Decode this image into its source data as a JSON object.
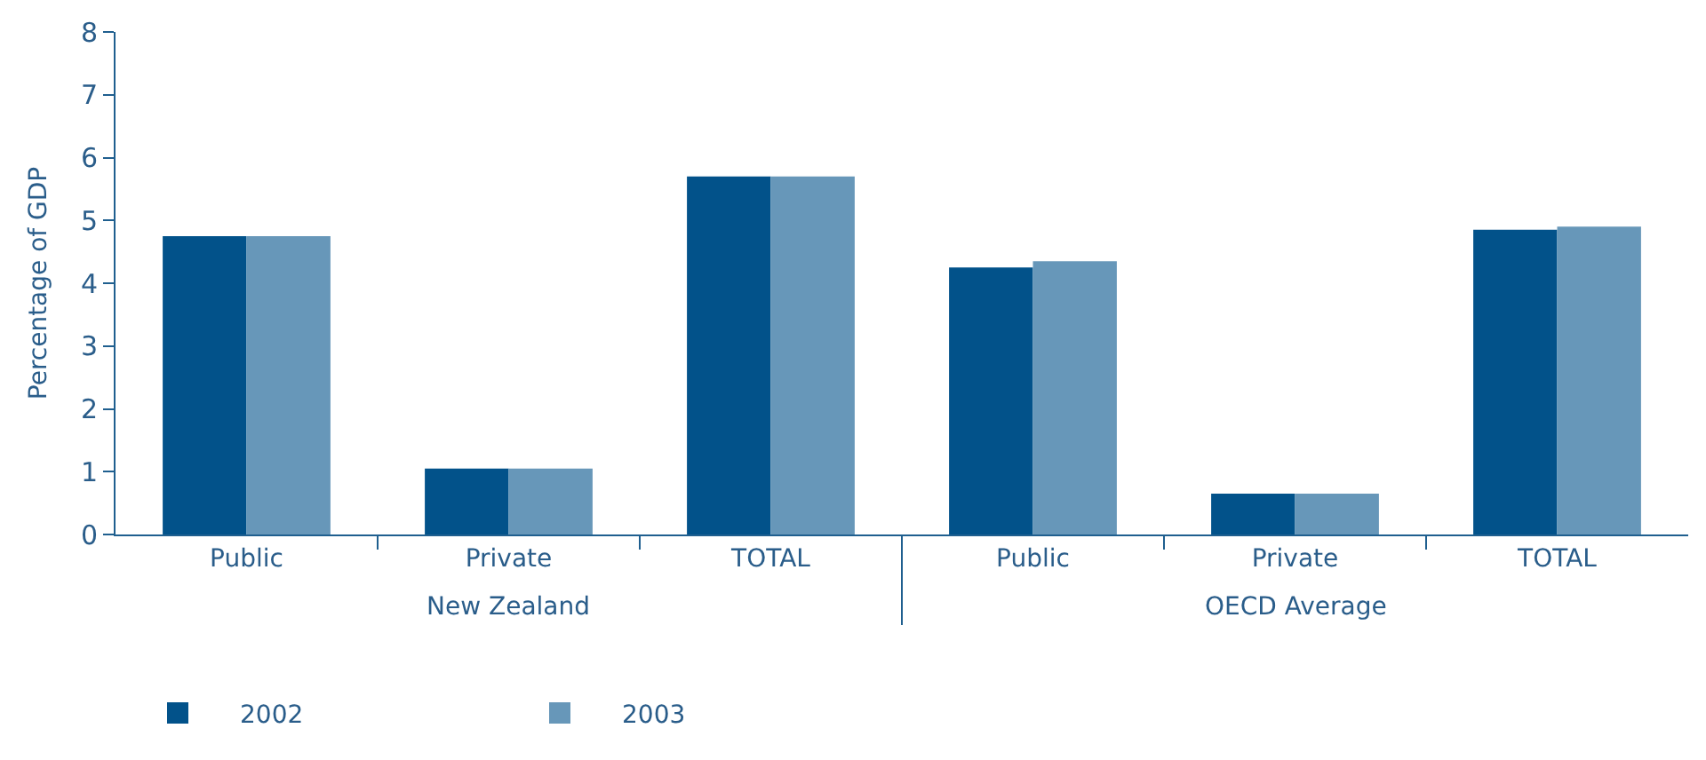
{
  "chart_data": {
    "type": "bar",
    "ylabel": "Percentage of GDP",
    "categories": [
      "Public",
      "Private",
      "TOTAL",
      "Public",
      "Private",
      "TOTAL"
    ],
    "series": [
      {
        "name": "2002",
        "color": "#02528a",
        "values": [
          4.75,
          1.05,
          5.7,
          4.25,
          0.65,
          4.85
        ]
      },
      {
        "name": "2003",
        "color": "#6797b9",
        "values": [
          4.75,
          1.05,
          5.7,
          4.35,
          0.65,
          4.9
        ]
      }
    ],
    "annotations": [
      "New Zealand",
      "OECD Average"
    ],
    "ylim": [
      0,
      8
    ],
    "yticks": [
      0,
      1,
      2,
      3,
      4,
      5,
      6,
      7,
      8
    ],
    "legend": "bottom left"
  }
}
